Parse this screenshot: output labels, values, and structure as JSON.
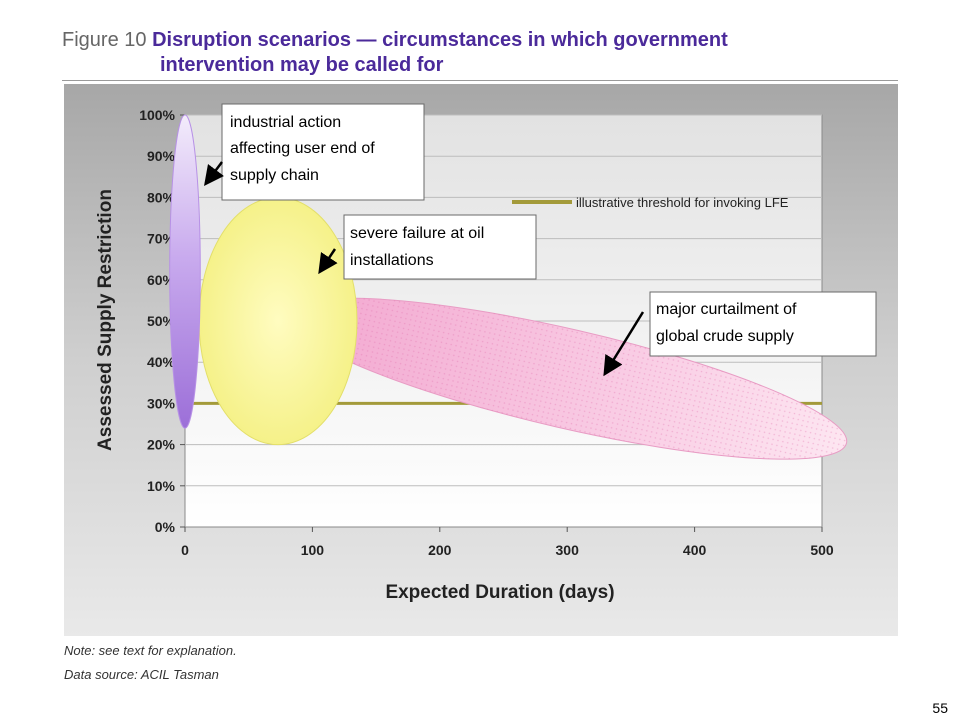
{
  "figure": {
    "label": "Figure 10",
    "title_line1": "Disruption scenarios — circumstances in which government",
    "title_line2": "intervention may be called for"
  },
  "note": "Note: see text for explanation.",
  "source": "Data source: ACIL Tasman",
  "page_number": "55",
  "colors": {
    "panel_bg": "#c8c8c8",
    "plot_bg": "#ffffff",
    "purple_ellipse": "#b08be0",
    "yellow_ellipse": "#f6f38a",
    "pink_ellipse": "#f7b8d8",
    "threshold_line": "#a39a3a"
  },
  "chart_data": {
    "type": "scatter",
    "xlabel": "Expected Duration (days)",
    "ylabel": "Assessed Supply Restriction",
    "xlim": [
      0,
      500
    ],
    "ylim": [
      0,
      100
    ],
    "xticks": [
      "0",
      "100",
      "200",
      "300",
      "400",
      "500"
    ],
    "yticks": [
      "0%",
      "10%",
      "20%",
      "30%",
      "40%",
      "50%",
      "60%",
      "70%",
      "80%",
      "90%",
      "100%"
    ],
    "grid": true,
    "threshold": {
      "legend_label": "illustrative threshold for invoking LFE",
      "y": 30
    },
    "regions": [
      {
        "label": "industrial action affecting user end of supply chain",
        "center_x": 0,
        "center_y": 62,
        "radius_x": 12,
        "radius_y": 38,
        "color": "purple"
      },
      {
        "label": "severe failure at oil installations",
        "center_x": 73,
        "center_y": 50,
        "radius_x": 62,
        "radius_y": 30,
        "color": "yellow"
      },
      {
        "label": "major curtailment of global crude supply",
        "center_x": 300,
        "center_y": 36,
        "radius_x": 225,
        "radius_y": 12,
        "rotation": 13,
        "color": "pink"
      }
    ]
  }
}
